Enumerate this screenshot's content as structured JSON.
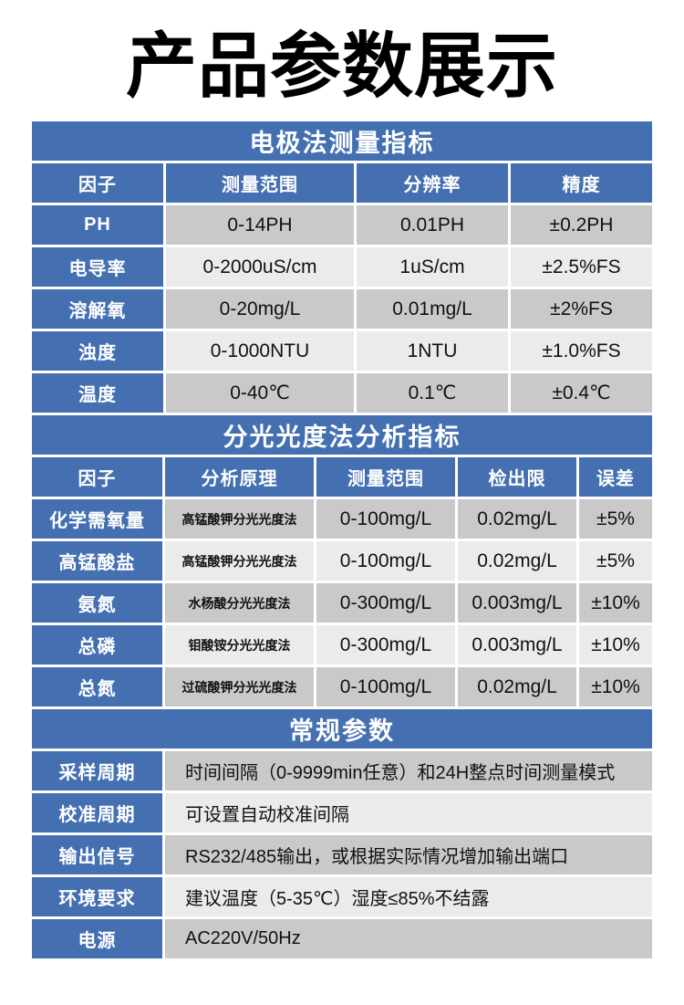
{
  "page_title": "产品参数展示",
  "colors": {
    "blue": "#4470b2",
    "row-dark": "#c9c9c9",
    "row-light": "#ebebeb",
    "ink": "#111111"
  },
  "electrode_table": {
    "title": "电极法测量指标",
    "columns": [
      "因子",
      "测量范围",
      "分辨率",
      "精度"
    ],
    "rows": [
      [
        "PH",
        "0-14PH",
        "0.01PH",
        "±0.2PH"
      ],
      [
        "电导率",
        "0-2000uS/cm",
        "1uS/cm",
        "±2.5%FS"
      ],
      [
        "溶解氧",
        "0-20mg/L",
        "0.01mg/L",
        "±2%FS"
      ],
      [
        "浊度",
        "0-1000NTU",
        "1NTU",
        "±1.0%FS"
      ],
      [
        "温度",
        "0-40℃",
        "0.1℃",
        "±0.4℃"
      ]
    ]
  },
  "spectro_table": {
    "title": "分光光度法分析指标",
    "columns": [
      "因子",
      "分析原理",
      "测量范围",
      "检出限",
      "误差"
    ],
    "rows": [
      [
        "化学需氧量",
        "高锰酸钾分光光度法",
        "0-100mg/L",
        "0.02mg/L",
        "±5%"
      ],
      [
        "高锰酸盐",
        "高锰酸钾分光光度法",
        "0-100mg/L",
        "0.02mg/L",
        "±5%"
      ],
      [
        "氨氮",
        "水杨酸分光光度法",
        "0-300mg/L",
        "0.003mg/L",
        "±10%"
      ],
      [
        "总磷",
        "钼酸铵分光光度法",
        "0-300mg/L",
        "0.003mg/L",
        "±10%"
      ],
      [
        "总氮",
        "过硫酸钾分光光度法",
        "0-100mg/L",
        "0.02mg/L",
        "±10%"
      ]
    ]
  },
  "general_table": {
    "title": "常规参数",
    "rows": [
      [
        "采样周期",
        "时间间隔（0-9999min任意）和24H整点时间测量模式"
      ],
      [
        "校准周期",
        "可设置自动校准间隔"
      ],
      [
        "输出信号",
        "RS232/485输出，或根据实际情况增加输出端口"
      ],
      [
        "环境要求",
        "建议温度（5-35℃）湿度≤85%不结露"
      ],
      [
        "电源",
        "AC220V/50Hz"
      ]
    ]
  }
}
